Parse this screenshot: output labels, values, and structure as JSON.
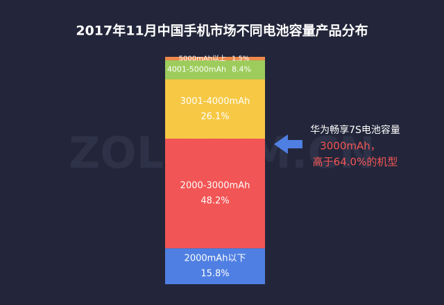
{
  "chart_data": {
    "type": "stacked_bar",
    "title": "2017年11月中国手机市场不同电池容量产品分布",
    "watermark": "ZOL.COM.CN",
    "ylim": [
      0,
      100
    ],
    "series": [
      {
        "name": "2000mAh以下",
        "color": "#4f7fe2",
        "values": [
          15.8
        ],
        "value_labels": [
          "15.8%"
        ]
      },
      {
        "name": "2000-3000mAh",
        "color": "#f25555",
        "values": [
          48.2
        ],
        "value_labels": [
          "48.2%"
        ]
      },
      {
        "name": "3001-4000mAh",
        "color": "#f6c844",
        "values": [
          26.1
        ],
        "value_labels": [
          "26.1%"
        ]
      },
      {
        "name": "4001-5000mAh",
        "color": "#9dcc5c",
        "values": [
          8.4
        ],
        "value_labels": [
          "8.4%"
        ]
      },
      {
        "name": "5000mAh以上",
        "color": "#f08a4b",
        "values": [
          1.5
        ],
        "value_labels": [
          "1.5%"
        ]
      }
    ],
    "annotation": [
      "华为畅享7S电池容量",
      "3000mAh，",
      "高于64.0%的机型"
    ]
  }
}
